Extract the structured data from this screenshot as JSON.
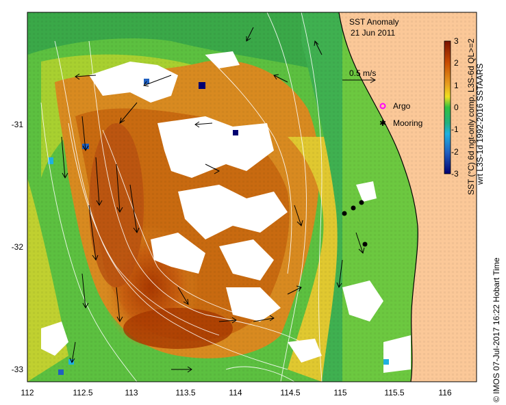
{
  "map": {
    "title": "SST Anomaly",
    "date": "21 Jun 2011",
    "scale_vector_label": "0.5 m/s",
    "legend": {
      "argo_label": "Argo",
      "argo_color": "#ff00ff",
      "mooring_label": "Mooring",
      "mooring_color": "#000000"
    },
    "x_ticks": [
      "112",
      "112.5",
      "113",
      "113.5",
      "114",
      "114.5",
      "115",
      "115.5",
      "116"
    ],
    "y_ticks": [
      "-31",
      "-32",
      "-33"
    ],
    "colorbar": {
      "ticks": [
        "3",
        "2",
        "1",
        "0",
        "-1",
        "-2",
        "-3"
      ],
      "label_line1": "SST (°C) 6d ngt-only comp, L3S-6d QL>=2",
      "label_line2": "wrt L3S-1d 1992-2016 SSTAARS"
    },
    "credit": "© IMOS 07-Jul-2017 16:22 Hobart Time",
    "land_color": "#fbc898",
    "cloud_color": "#ffffff"
  }
}
